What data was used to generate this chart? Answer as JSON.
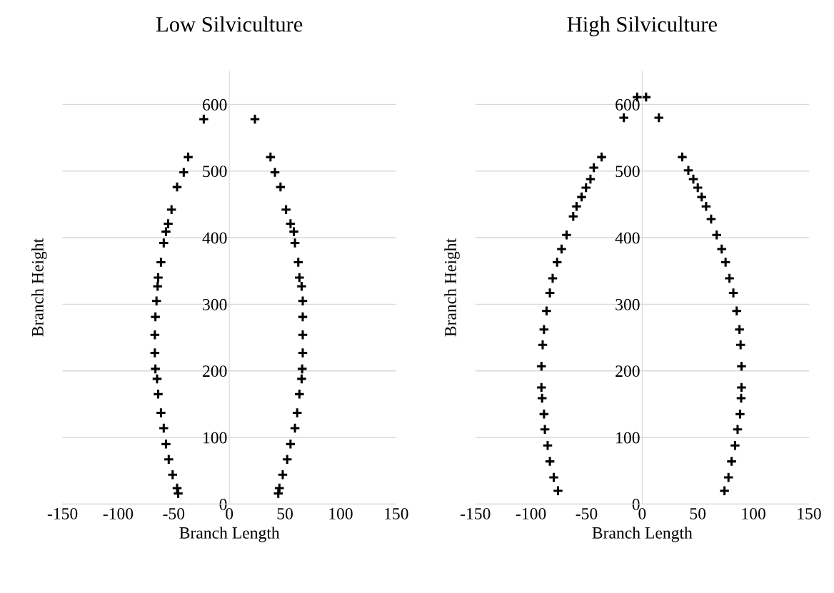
{
  "chart_data": [
    {
      "type": "scatter",
      "title": "Low Silviculture",
      "xlabel": "Branch Length",
      "ylabel": "Branch Height",
      "marker": "cross",
      "grid": "y",
      "xlim": [
        -150,
        150
      ],
      "xticks": [
        -150,
        -100,
        -50,
        0,
        50,
        100,
        150
      ],
      "ylim": [
        0,
        650
      ],
      "yticks": [
        0,
        100,
        200,
        300,
        400,
        500,
        600
      ],
      "series": [
        {
          "color": "#000000",
          "x": [
            -23,
            -37,
            -41,
            -47,
            -52,
            -55,
            -57,
            -59,
            -61.5,
            -64,
            -64.5,
            -65.5,
            -66.5,
            -67,
            -67,
            -66.5,
            -65,
            -64,
            -61.5,
            -59,
            -57,
            -54.5,
            -51,
            -47,
            -46,
            23,
            37,
            41,
            46,
            51,
            55,
            58,
            59,
            62,
            63,
            65,
            66,
            66,
            66,
            66,
            65.5,
            65,
            63,
            61,
            59,
            55,
            52,
            48,
            45,
            44
          ],
          "values": [
            578,
            521,
            498,
            476,
            442,
            421,
            409,
            392,
            363,
            340,
            327,
            305,
            281,
            254,
            227,
            203,
            188,
            165,
            137,
            114,
            90,
            67,
            44,
            24,
            16,
            578,
            521,
            498,
            476,
            442,
            421,
            409,
            392,
            363,
            340,
            327,
            305,
            281,
            254,
            227,
            203,
            188,
            165,
            137,
            114,
            90,
            67,
            44,
            24,
            16
          ]
        }
      ]
    },
    {
      "type": "scatter",
      "title": "High Silviculture",
      "xlabel": "Branch Length",
      "ylabel": "Branch Height",
      "marker": "cross",
      "grid": "y",
      "xlim": [
        -150,
        150
      ],
      "xticks": [
        -150,
        -100,
        -50,
        0,
        50,
        100,
        150
      ],
      "ylim": [
        0,
        650
      ],
      "yticks": [
        0,
        100,
        200,
        300,
        400,
        500,
        600
      ],
      "series": [
        {
          "color": "#000000",
          "x": [
            -4.5,
            -16.5,
            -36.5,
            -43.5,
            -46.5,
            -50.5,
            -54.5,
            -59,
            -62,
            -68,
            -72.5,
            -76.5,
            -80.5,
            -83,
            -86,
            -88.3,
            -89.5,
            -90.6,
            -90.6,
            -90,
            -88.3,
            -87.5,
            -85,
            -83,
            -79.5,
            -75.7,
            3.5,
            15,
            36,
            41.5,
            46,
            50,
            53.5,
            57.5,
            62,
            67,
            71.5,
            75,
            78.5,
            82,
            85,
            87.5,
            88.5,
            89.3,
            89.3,
            89,
            88,
            85.8,
            83.5,
            80.4,
            77.6,
            74
          ],
          "values": [
            611,
            580,
            521,
            505,
            488,
            475,
            461,
            447,
            432,
            404,
            383,
            363,
            339,
            317,
            290,
            262,
            239,
            207,
            175,
            159,
            135,
            112,
            88,
            64,
            40,
            20,
            611,
            580,
            521,
            501,
            488,
            475,
            461,
            447,
            428,
            404,
            383,
            363,
            339,
            317,
            290,
            262,
            239,
            207,
            175,
            159,
            135,
            112,
            88,
            64,
            40,
            20
          ]
        }
      ]
    }
  ]
}
